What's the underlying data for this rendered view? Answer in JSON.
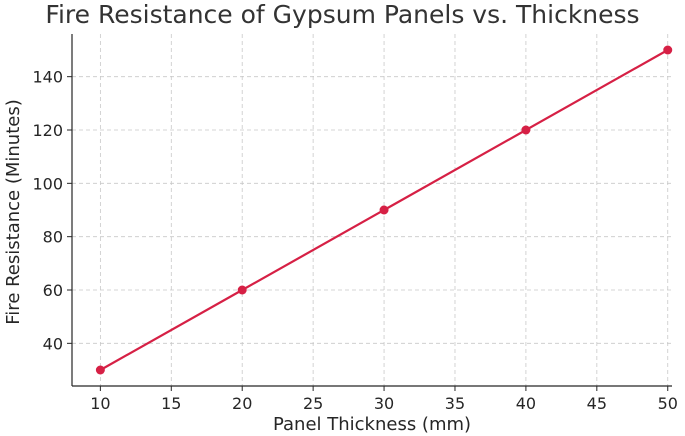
{
  "chart_data": {
    "type": "line",
    "title": "Fire Resistance of Gypsum Panels vs. Thickness",
    "xlabel": "Panel Thickness (mm)",
    "ylabel": "Fire Resistance (Minutes)",
    "x": [
      10,
      20,
      30,
      40,
      50
    ],
    "series": [
      {
        "values": [
          30,
          60,
          90,
          120,
          150
        ],
        "color": "#d62045",
        "marker": "circle"
      }
    ],
    "xlim": [
      8,
      50.3
    ],
    "ylim": [
      24,
      156
    ],
    "xticks": [
      10,
      15,
      20,
      25,
      30,
      35,
      40,
      45,
      50
    ],
    "yticks": [
      40,
      60,
      80,
      100,
      120,
      140
    ],
    "grid": true,
    "grid_style": "dashed",
    "legend": "none"
  }
}
